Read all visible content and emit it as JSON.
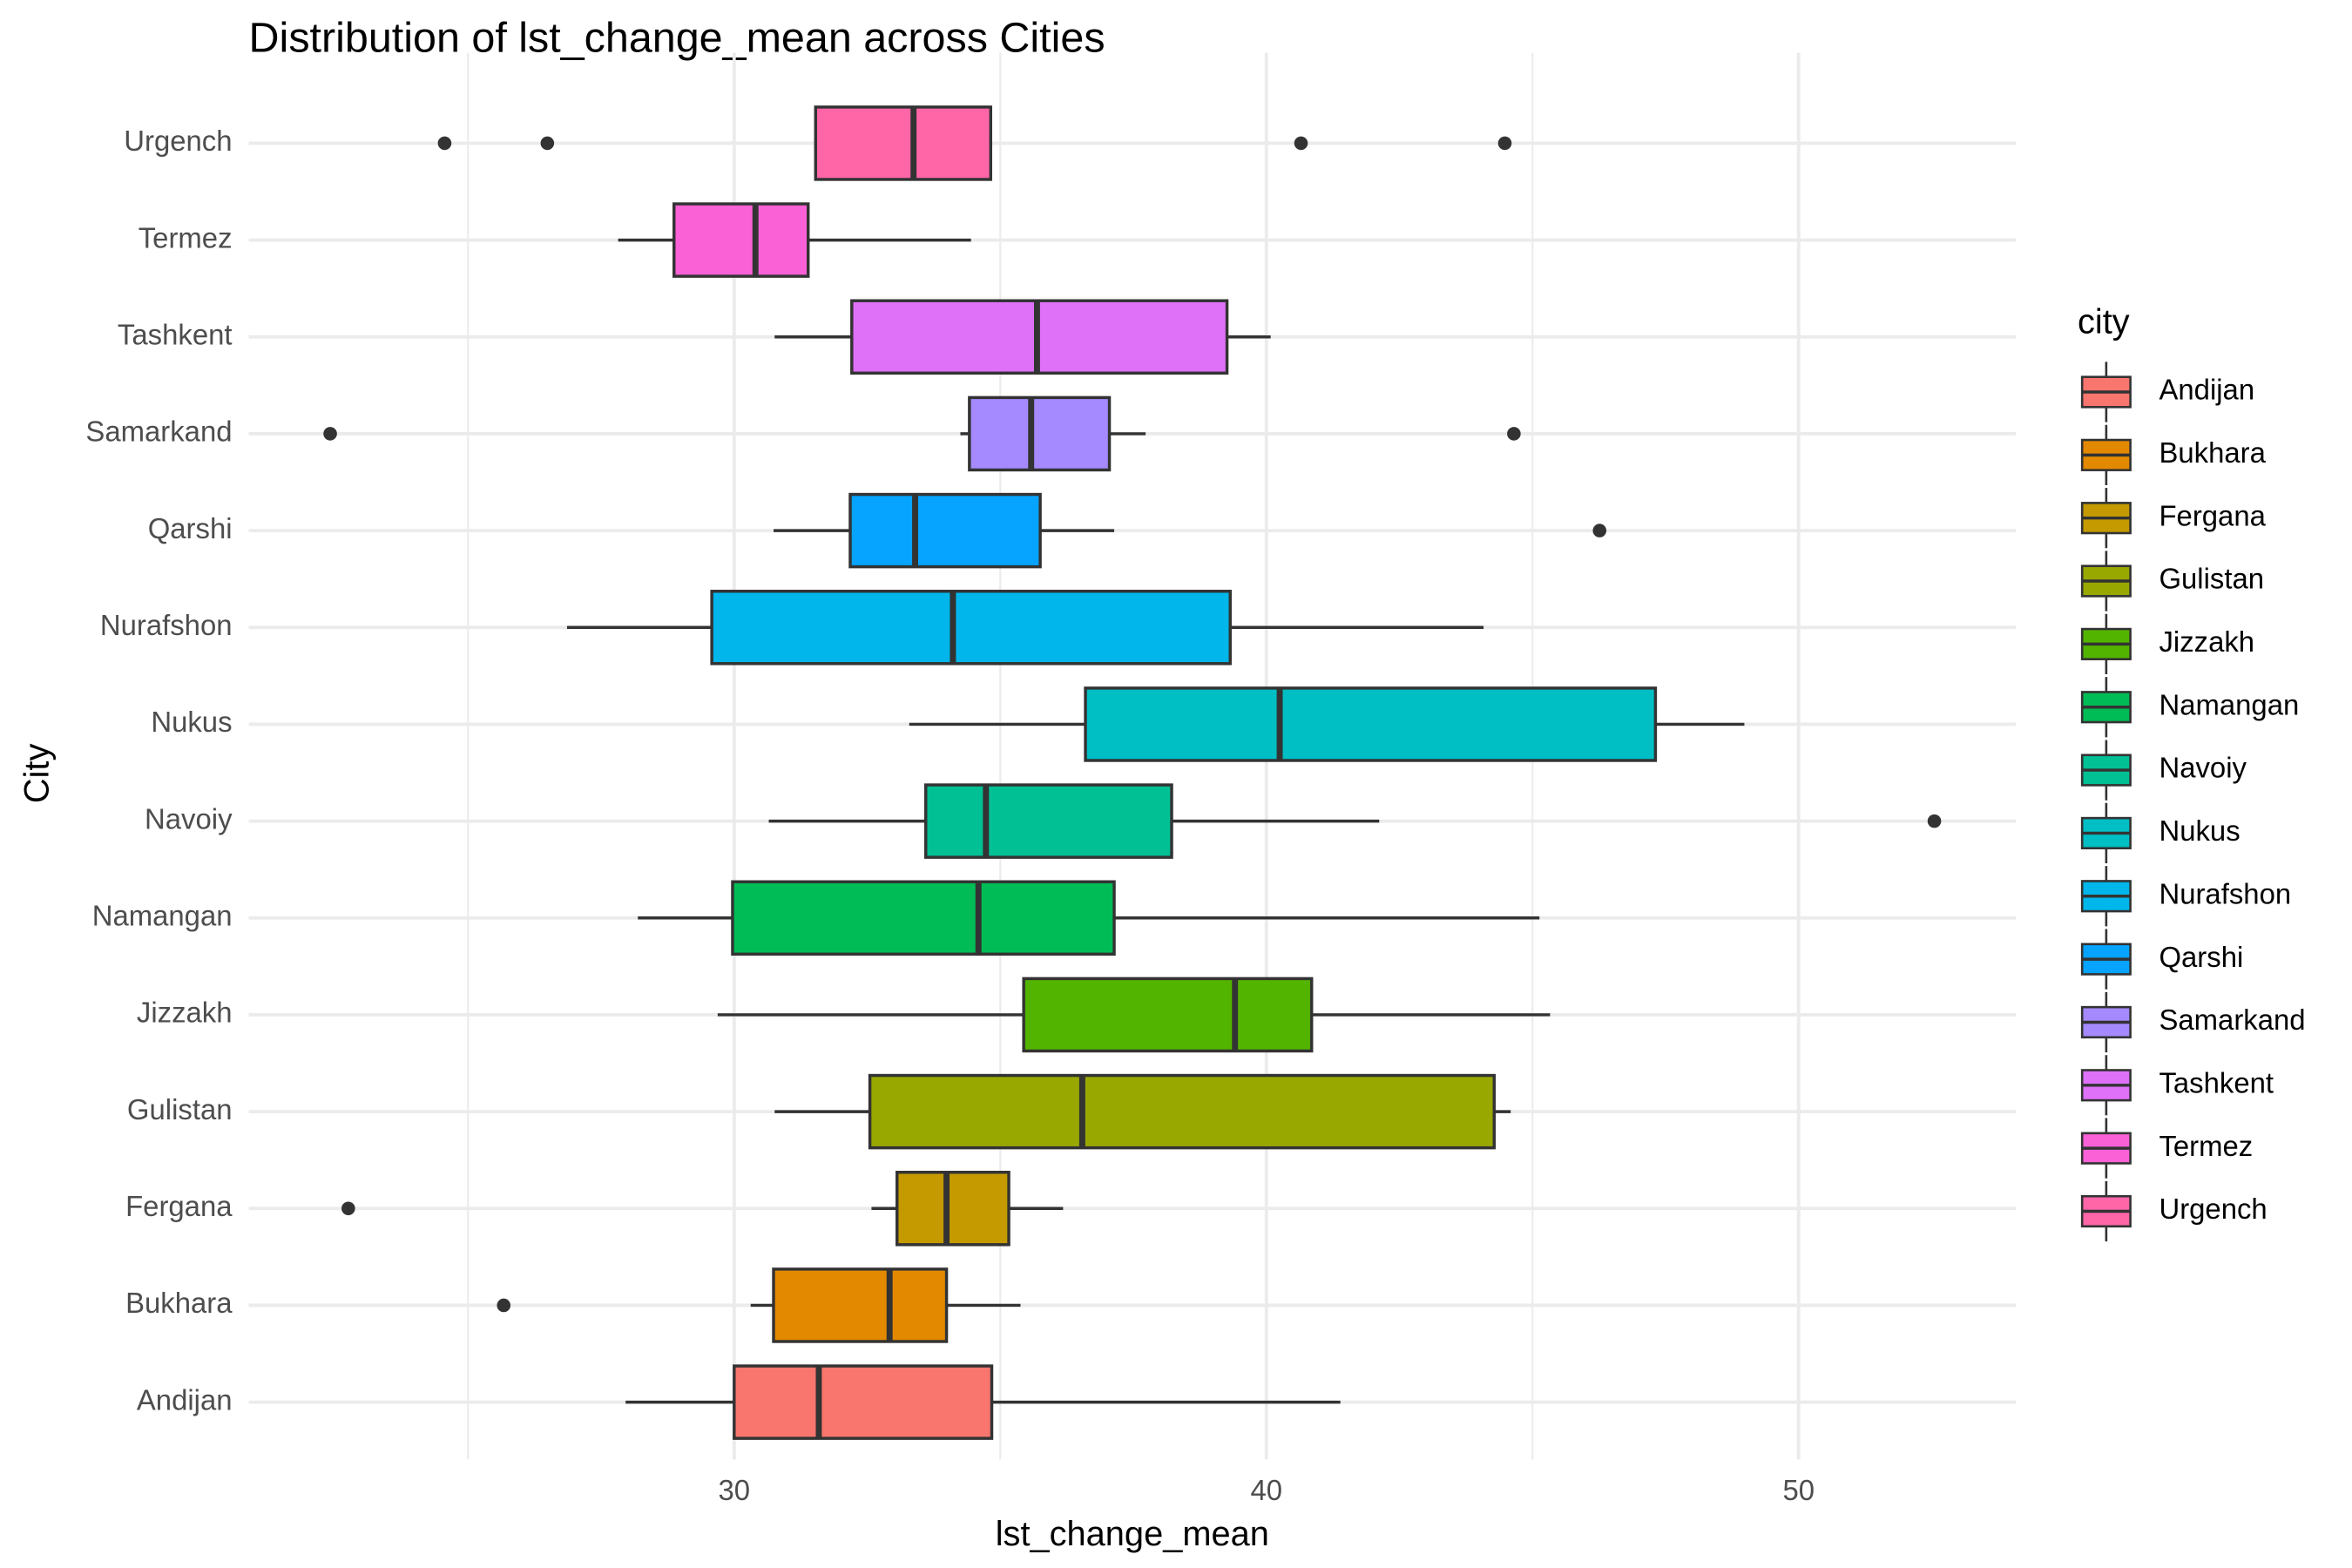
{
  "chart_data": {
    "type": "boxplot",
    "orientation": "horizontal",
    "title": "Distribution of lst_change_mean across Cities",
    "x_label": "lst_change_mean",
    "y_label": "City",
    "legend_title": "city",
    "legend_position": "right",
    "grid": true,
    "xlim": [
      20.88,
      54.08
    ],
    "xticks": [
      30,
      40,
      50
    ],
    "x_minor_ticks": [
      25,
      35,
      45
    ],
    "categories": [
      "Andijan",
      "Bukhara",
      "Fergana",
      "Gulistan",
      "Jizzakh",
      "Namangan",
      "Navoiy",
      "Nukus",
      "Nurafshon",
      "Qarshi",
      "Samarkand",
      "Tashkent",
      "Termez",
      "Urgench"
    ],
    "series": [
      {
        "name": "Andijan",
        "color": "#F8766D",
        "min": 27.96,
        "q1": 30.0,
        "median": 31.59,
        "q3": 34.84,
        "max": 41.39,
        "outliers": []
      },
      {
        "name": "Bukhara",
        "color": "#E38900",
        "min": 30.31,
        "q1": 30.74,
        "median": 32.92,
        "q3": 33.99,
        "max": 35.38,
        "outliers": [
          25.67
        ]
      },
      {
        "name": "Fergana",
        "color": "#C49A00",
        "min": 32.58,
        "q1": 33.06,
        "median": 33.99,
        "q3": 35.16,
        "max": 36.18,
        "outliers": [
          22.75
        ]
      },
      {
        "name": "Gulistan",
        "color": "#99A800",
        "min": 30.76,
        "q1": 32.55,
        "median": 36.54,
        "q3": 44.28,
        "max": 44.59,
        "outliers": []
      },
      {
        "name": "Jizzakh",
        "color": "#53B400",
        "min": 29.69,
        "q1": 35.44,
        "median": 39.41,
        "q3": 40.85,
        "max": 45.33,
        "outliers": []
      },
      {
        "name": "Namangan",
        "color": "#00BC56",
        "min": 28.19,
        "q1": 29.97,
        "median": 34.59,
        "q3": 37.14,
        "max": 45.13,
        "outliers": []
      },
      {
        "name": "Navoiy",
        "color": "#00C094",
        "min": 30.65,
        "q1": 33.6,
        "median": 34.73,
        "q3": 38.22,
        "max": 42.12,
        "outliers": [
          52.55
        ]
      },
      {
        "name": "Nukus",
        "color": "#00BFC4",
        "min": 33.29,
        "q1": 36.6,
        "median": 40.25,
        "q3": 47.31,
        "max": 48.98,
        "outliers": []
      },
      {
        "name": "Nurafshon",
        "color": "#00B6EB",
        "min": 26.86,
        "q1": 29.58,
        "median": 34.11,
        "q3": 39.32,
        "max": 44.08,
        "outliers": []
      },
      {
        "name": "Qarshi",
        "color": "#06A4FF",
        "min": 30.74,
        "q1": 32.18,
        "median": 33.4,
        "q3": 35.75,
        "max": 37.14,
        "outliers": [
          46.26
        ]
      },
      {
        "name": "Samarkand",
        "color": "#A58AFF",
        "min": 34.25,
        "q1": 34.42,
        "median": 35.58,
        "q3": 37.05,
        "max": 37.73,
        "outliers": [
          22.41,
          44.65
        ]
      },
      {
        "name": "Tashkent",
        "color": "#DF70F8",
        "min": 30.76,
        "q1": 32.21,
        "median": 35.69,
        "q3": 39.26,
        "max": 40.08,
        "outliers": []
      },
      {
        "name": "Termez",
        "color": "#FB61D7",
        "min": 27.82,
        "q1": 28.87,
        "median": 30.4,
        "q3": 31.39,
        "max": 34.45,
        "outliers": []
      },
      {
        "name": "Urgench",
        "color": "#FF66A8",
        "min": 31.53,
        "q1": 31.53,
        "median": 33.37,
        "q3": 34.82,
        "max": 34.82,
        "outliers": [
          24.56,
          26.49,
          40.65,
          44.48
        ]
      }
    ]
  }
}
